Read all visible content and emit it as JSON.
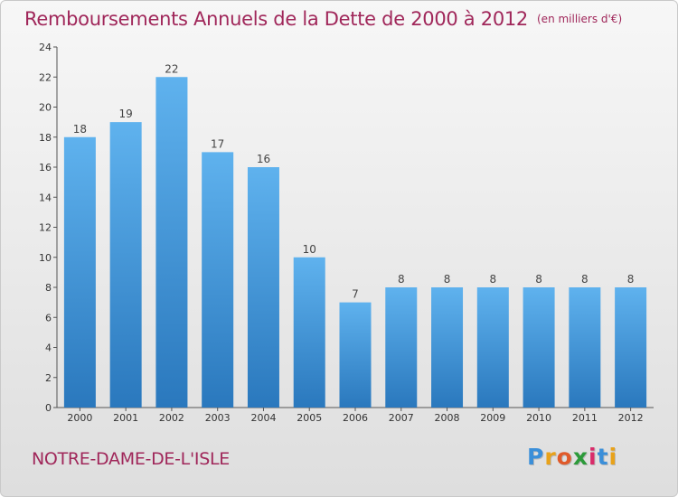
{
  "header": {
    "title": "Remboursements Annuels de la Dette de 2000 à 2012",
    "unit": "(en milliers d'€)"
  },
  "footer": {
    "place": "NOTRE-DAME-DE-L'ISLE",
    "logo_letters": [
      "P",
      "r",
      "o",
      "x",
      "i",
      "t",
      "i"
    ],
    "logo_colors": [
      "#3b8fd9",
      "#e8a21a",
      "#e05a2a",
      "#2c9a3a",
      "#d92c6a",
      "#3b8fd9",
      "#e8a21a"
    ]
  },
  "colors": {
    "accent": "#a0275a",
    "bar_top": "#5fb2ee",
    "bar_bottom": "#2a78bd"
  },
  "chart_data": {
    "type": "bar",
    "categories": [
      "2000",
      "2001",
      "2002",
      "2003",
      "2004",
      "2005",
      "2006",
      "2007",
      "2008",
      "2009",
      "2010",
      "2011",
      "2012"
    ],
    "values": [
      18,
      19,
      22,
      17,
      16,
      10,
      7,
      8,
      8,
      8,
      8,
      8,
      8
    ],
    "title": "Remboursements Annuels de la Dette de 2000 à 2012",
    "ylim": [
      0,
      24
    ],
    "yticks": [
      0,
      2,
      4,
      6,
      8,
      10,
      12,
      14,
      16,
      18,
      20,
      22,
      24
    ],
    "grid": false,
    "data_labels": true
  }
}
